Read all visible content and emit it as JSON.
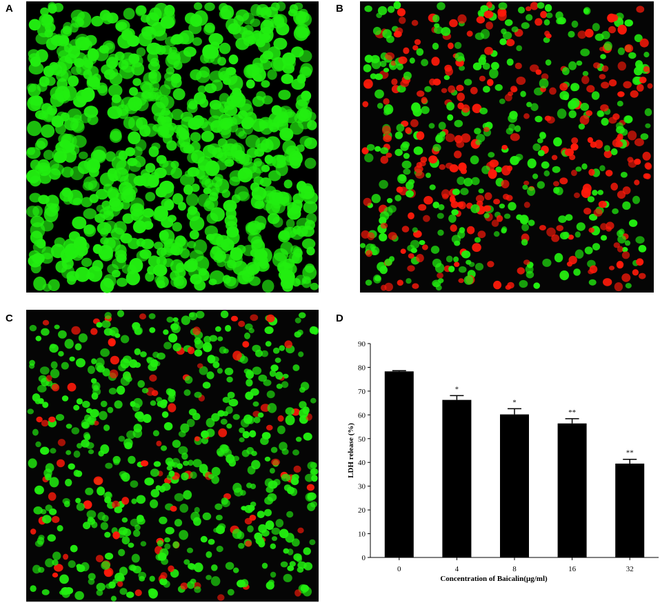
{
  "panels": [
    "A",
    "B",
    "C",
    "D"
  ],
  "chart_data": {
    "type": "bar",
    "x_label": "Concentration of Baicalin(μg/ml)",
    "y_label": "LDH release (%)",
    "categories": [
      "0",
      "4",
      "8",
      "16",
      "32"
    ],
    "values": [
      78.3,
      66.3,
      60.2,
      56.4,
      39.5
    ],
    "errors": [
      0.3,
      1.8,
      2.4,
      2.0,
      1.8
    ],
    "annotations": [
      null,
      "*",
      "*",
      "**",
      "**"
    ],
    "color": "#000000",
    "ylim": [
      0,
      90
    ],
    "yticks": [
      0,
      10,
      20,
      30,
      40,
      50,
      60,
      70,
      80,
      90
    ]
  }
}
